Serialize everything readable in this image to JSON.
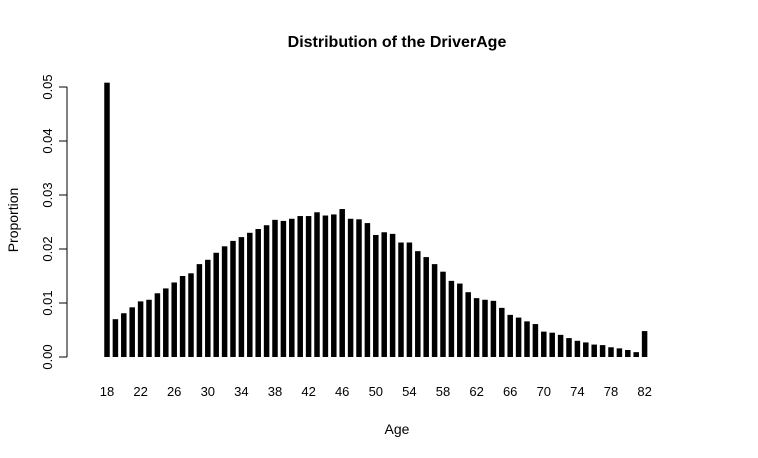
{
  "chart_data": {
    "type": "bar",
    "title": "Distribution of the DriverAge",
    "xlabel": "Age",
    "ylabel": "Proportion",
    "ylim": [
      0,
      0.05
    ],
    "yticks": [
      0.0,
      0.01,
      0.02,
      0.03,
      0.04,
      0.05
    ],
    "ytick_labels": [
      "0.00",
      "0.01",
      "0.02",
      "0.03",
      "0.04",
      "0.05"
    ],
    "xtick_labels": [
      "18",
      "22",
      "26",
      "30",
      "34",
      "38",
      "42",
      "46",
      "50",
      "54",
      "58",
      "62",
      "66",
      "70",
      "74",
      "78",
      "82"
    ],
    "grid": false,
    "x": [
      18,
      19,
      20,
      21,
      22,
      23,
      24,
      25,
      26,
      27,
      28,
      29,
      30,
      31,
      32,
      33,
      34,
      35,
      36,
      37,
      38,
      39,
      40,
      41,
      42,
      43,
      44,
      45,
      46,
      47,
      48,
      49,
      50,
      51,
      52,
      53,
      54,
      55,
      56,
      57,
      58,
      59,
      60,
      61,
      62,
      63,
      64,
      65,
      66,
      67,
      68,
      69,
      70,
      71,
      72,
      73,
      74,
      75,
      76,
      77,
      78,
      79,
      80,
      81,
      82
    ],
    "values": [
      0.0508,
      0.007,
      0.0081,
      0.0092,
      0.0103,
      0.0106,
      0.0118,
      0.0127,
      0.0138,
      0.015,
      0.0155,
      0.0172,
      0.018,
      0.0193,
      0.0205,
      0.0215,
      0.0222,
      0.023,
      0.0237,
      0.0244,
      0.0254,
      0.0252,
      0.0256,
      0.0261,
      0.0261,
      0.0268,
      0.0262,
      0.0264,
      0.0274,
      0.0256,
      0.0255,
      0.0248,
      0.0226,
      0.0231,
      0.0228,
      0.0212,
      0.0212,
      0.0196,
      0.0185,
      0.0172,
      0.0158,
      0.0141,
      0.0136,
      0.012,
      0.0109,
      0.0106,
      0.0104,
      0.0091,
      0.0078,
      0.0073,
      0.0066,
      0.0061,
      0.0047,
      0.0045,
      0.0041,
      0.0035,
      0.003,
      0.0027,
      0.0023,
      0.0022,
      0.0018,
      0.0016,
      0.0013,
      0.0009,
      0.0048
    ]
  }
}
